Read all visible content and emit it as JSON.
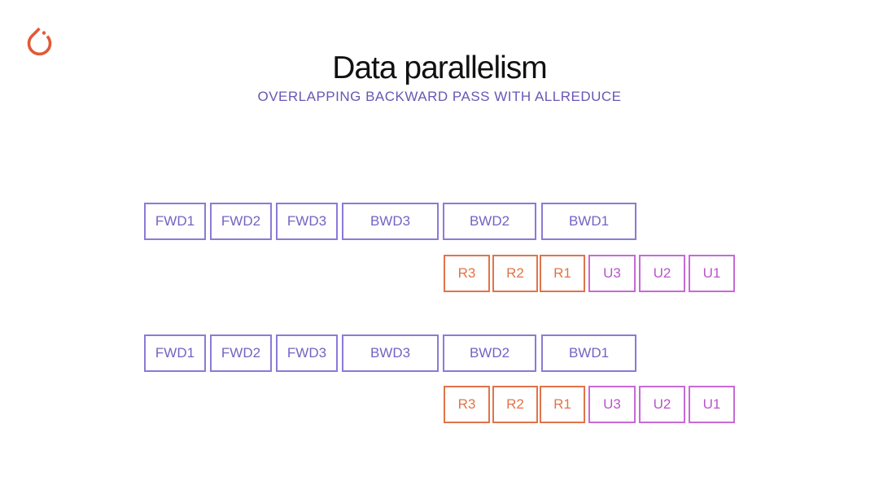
{
  "slide": {
    "title": "Data parallelism",
    "subtitle": "OVERLAPPING BACKWARD PASS WITH ALLREDUCE"
  },
  "logo": {
    "icon": "pytorch-flame-icon",
    "color": "#e05a36"
  },
  "colors": {
    "compute": "#8c7ad6",
    "allreduce": "#e07449",
    "update": "#c66ad6"
  },
  "workers": [
    {
      "compute_steps": [
        "FWD1",
        "FWD2",
        "FWD3",
        "BWD3",
        "BWD2",
        "BWD1"
      ],
      "allreduce_steps": [
        "R3",
        "R2",
        "R1"
      ],
      "update_steps": [
        "U3",
        "U2",
        "U1"
      ]
    },
    {
      "compute_steps": [
        "FWD1",
        "FWD2",
        "FWD3",
        "BWD3",
        "BWD2",
        "BWD1"
      ],
      "allreduce_steps": [
        "R3",
        "R2",
        "R1"
      ],
      "update_steps": [
        "U3",
        "U2",
        "U1"
      ]
    }
  ]
}
